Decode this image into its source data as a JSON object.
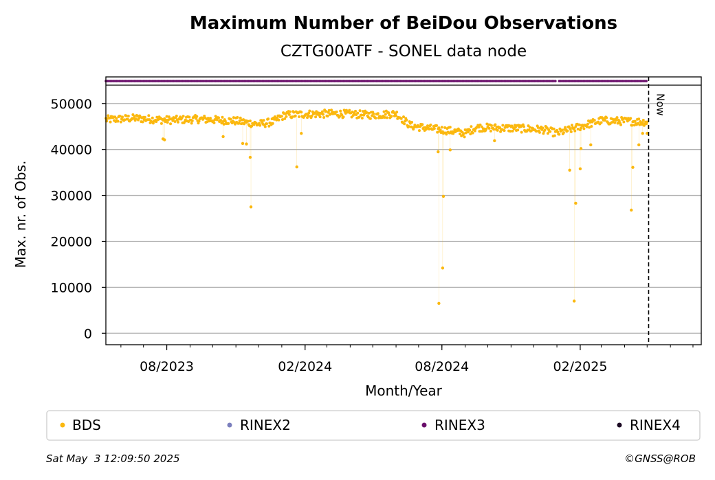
{
  "chart_data": {
    "type": "scatter",
    "title": "Maximum Number of BeiDou Observations",
    "subtitle": "CZTG00ATF - SONEL data node",
    "xlabel": "Month/Year",
    "ylabel": "Max. nr. of Obs.",
    "x_range": [
      "2023-05-12",
      "2025-07-12"
    ],
    "ylim": [
      -2500,
      54000
    ],
    "y_ticks": [
      "0",
      "10000",
      "20000",
      "30000",
      "40000",
      "50000"
    ],
    "x_tick_labels": [
      {
        "date": "2023-08-01",
        "label": "08/2023"
      },
      {
        "date": "2024-02-01",
        "label": "02/2024"
      },
      {
        "date": "2024-08-01",
        "label": "08/2024"
      },
      {
        "date": "2025-02-01",
        "label": "02/2025"
      }
    ],
    "grid": "horizontal",
    "now_marker": {
      "date": "2025-05-03",
      "label": "Now"
    },
    "rinex3_strip": {
      "segments": [
        [
          "2023-05-12",
          "2024-12-30"
        ],
        [
          "2025-01-04",
          "2025-05-01"
        ]
      ],
      "color": "#6a0f6b"
    },
    "series": [
      {
        "name": "BDS",
        "color": "#fbb80f",
        "anchors": [
          [
            "2023-05-12",
            46500
          ],
          [
            "2023-06-20",
            46800
          ],
          [
            "2023-08-01",
            46400
          ],
          [
            "2023-09-15",
            46600
          ],
          [
            "2023-11-01",
            46200
          ],
          [
            "2023-12-01",
            45500
          ],
          [
            "2023-12-20",
            46000
          ],
          [
            "2024-01-05",
            47500
          ],
          [
            "2024-02-01",
            47700
          ],
          [
            "2024-03-15",
            47800
          ],
          [
            "2024-05-01",
            47500
          ],
          [
            "2024-06-01",
            47800
          ],
          [
            "2024-06-20",
            45200
          ],
          [
            "2024-07-15",
            44600
          ],
          [
            "2024-08-15",
            44000
          ],
          [
            "2024-09-01",
            43500
          ],
          [
            "2024-09-15",
            44800
          ],
          [
            "2024-11-10",
            44600
          ],
          [
            "2024-12-15",
            44300
          ],
          [
            "2025-01-01",
            43500
          ],
          [
            "2025-02-01",
            45000
          ],
          [
            "2025-03-01",
            46300
          ],
          [
            "2025-05-01",
            46000
          ]
        ],
        "outliers": [
          [
            "2023-07-27",
            42300
          ],
          [
            "2023-07-29",
            42100
          ],
          [
            "2023-10-15",
            42800
          ],
          [
            "2023-11-10",
            41300
          ],
          [
            "2023-11-15",
            41200
          ],
          [
            "2023-11-20",
            38300
          ],
          [
            "2023-11-21",
            27500
          ],
          [
            "2024-01-21",
            36200
          ],
          [
            "2024-01-27",
            43500
          ],
          [
            "2024-07-27",
            39500
          ],
          [
            "2024-07-28",
            6500
          ],
          [
            "2024-08-02",
            14200
          ],
          [
            "2024-08-03",
            29800
          ],
          [
            "2024-08-12",
            39900
          ],
          [
            "2024-10-10",
            41900
          ],
          [
            "2025-01-18",
            35500
          ],
          [
            "2025-01-24",
            7000
          ],
          [
            "2025-01-26",
            28300
          ],
          [
            "2025-02-01",
            35800
          ],
          [
            "2025-02-02",
            40200
          ],
          [
            "2025-02-15",
            41000
          ],
          [
            "2025-04-10",
            26800
          ],
          [
            "2025-04-12",
            36100
          ],
          [
            "2025-04-20",
            41000
          ],
          [
            "2025-04-25",
            43500
          ],
          [
            "2025-05-01",
            43500
          ]
        ]
      },
      {
        "name": "RINEX2",
        "color": "#7b7fbd"
      },
      {
        "name": "RINEX3",
        "color": "#6a0f6b"
      },
      {
        "name": "RINEX4",
        "color": "#1c0a24"
      }
    ]
  },
  "footer": {
    "timestamp": "Sat May  3 12:09:50 2025",
    "credit": "©GNSS@ROB"
  }
}
